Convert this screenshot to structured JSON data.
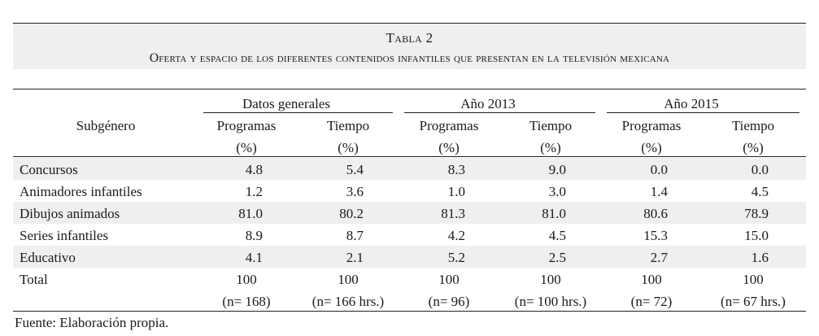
{
  "table": {
    "label": "Tabla 2",
    "caption": "Oferta y espacio de los diferentes contenidos infantiles que presentan en la televisión mexicana",
    "group_headers": [
      "Datos generales",
      "Año 2013",
      "Año 2015"
    ],
    "subgenre_header": "Subgénero",
    "col_programas": "Programas",
    "col_tiempo": "Tiempo",
    "col_unit": "(%)",
    "rows": [
      {
        "label": "Concursos",
        "values": [
          "4.8",
          "5.4",
          "8.3",
          "9.0",
          "0.0",
          "0.0"
        ]
      },
      {
        "label": "Animadores infantiles",
        "values": [
          "1.2",
          "3.6",
          "1.0",
          "3.0",
          "1.4",
          "4.5"
        ]
      },
      {
        "label": "Dibujos animados",
        "values": [
          "81.0",
          "80.2",
          "81.3",
          "81.0",
          "80.6",
          "78.9"
        ]
      },
      {
        "label": "Series infantiles",
        "values": [
          "8.9",
          "8.7",
          "4.2",
          "4.5",
          "15.3",
          "15.0"
        ]
      },
      {
        "label": "Educativo",
        "values": [
          "4.1",
          "2.1",
          "5.2",
          "2.5",
          "2.7",
          "1.6"
        ]
      }
    ],
    "total_label": "Total",
    "total_values": [
      "100",
      "100",
      "100",
      "100",
      "100",
      "100"
    ],
    "n_values": [
      "(n= 168)",
      "(n= 166 hrs.)",
      "(n= 96)",
      "(n= 100 hrs.)",
      "(n= 72)",
      "(n= 67 hrs.)"
    ],
    "source": "Fuente: Elaboración propia."
  }
}
